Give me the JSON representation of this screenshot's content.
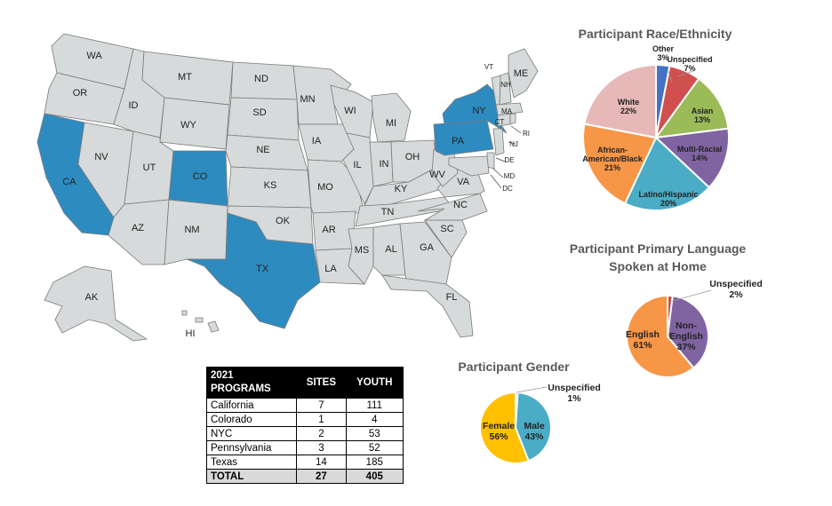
{
  "map": {
    "highlight_color": "#2e8bc0",
    "base_color": "#d6dadb",
    "border_color": "#7a7a7a",
    "highlighted_states": [
      "CA",
      "CO",
      "TX",
      "NY",
      "PA"
    ],
    "state_labels": [
      "WA",
      "OR",
      "CA",
      "NV",
      "ID",
      "MT",
      "WY",
      "UT",
      "AZ",
      "CO",
      "NM",
      "ND",
      "SD",
      "NE",
      "KS",
      "OK",
      "TX",
      "MN",
      "IA",
      "MO",
      "AR",
      "LA",
      "WI",
      "IL",
      "MI",
      "IN",
      "OH",
      "KY",
      "TN",
      "MS",
      "AL",
      "GA",
      "FL",
      "SC",
      "NC",
      "VA",
      "WV",
      "PA",
      "NY",
      "VT",
      "NH",
      "ME",
      "MA",
      "CT",
      "RI",
      "NJ",
      "DE",
      "MD",
      "DC",
      "AK",
      "HI"
    ]
  },
  "table": {
    "header": {
      "col1": "2021\nPROGRAMS",
      "col2": "SITES",
      "col3": "YOUTH"
    },
    "rows": [
      {
        "name": "California",
        "sites": "7",
        "youth": "111"
      },
      {
        "name": "Colorado",
        "sites": "1",
        "youth": "4"
      },
      {
        "name": "NYC",
        "sites": "2",
        "youth": "53"
      },
      {
        "name": "Pennsylvania",
        "sites": "3",
        "youth": "52"
      },
      {
        "name": "Texas",
        "sites": "14",
        "youth": "185"
      }
    ],
    "total": {
      "name": "TOTAL",
      "sites": "27",
      "youth": "405"
    }
  },
  "chart_data": [
    {
      "type": "pie",
      "title": "Participant Race/Ethnicity",
      "series": [
        {
          "name": "Other",
          "label": "3%",
          "value": 3,
          "color": "#4472c4"
        },
        {
          "name": "Unspecified",
          "label": "7%",
          "value": 7,
          "color": "#d0504f"
        },
        {
          "name": "Asian",
          "label": "13%",
          "value": 13,
          "color": "#9bbb59"
        },
        {
          "name": "Multi-Racial",
          "label": "14%",
          "value": 14,
          "color": "#8064a2"
        },
        {
          "name": "Latino/Hispanic",
          "label": "20%",
          "value": 20,
          "color": "#4bacc6"
        },
        {
          "name": "African-American/Black",
          "label": "21%",
          "value": 21,
          "color": "#f79646"
        },
        {
          "name": "White",
          "label": "22%",
          "value": 22,
          "color": "#e6b9b8"
        }
      ]
    },
    {
      "type": "pie",
      "title": "Participant Primary Language Spoken at Home",
      "series": [
        {
          "name": "Unspecified",
          "label": "2%",
          "value": 2,
          "color": "#c0504d"
        },
        {
          "name": "Non-English",
          "label": "37%",
          "value": 37,
          "color": "#8064a2"
        },
        {
          "name": "English",
          "label": "61%",
          "value": 61,
          "color": "#f79646"
        }
      ]
    },
    {
      "type": "pie",
      "title": "Participant Gender",
      "series": [
        {
          "name": "Unspecified",
          "label": "1%",
          "value": 1,
          "color": "#4472c4"
        },
        {
          "name": "Male",
          "label": "43%",
          "value": 43,
          "color": "#4bacc6"
        },
        {
          "name": "Female",
          "label": "56%",
          "value": 56,
          "color": "#ffc000"
        }
      ]
    }
  ]
}
